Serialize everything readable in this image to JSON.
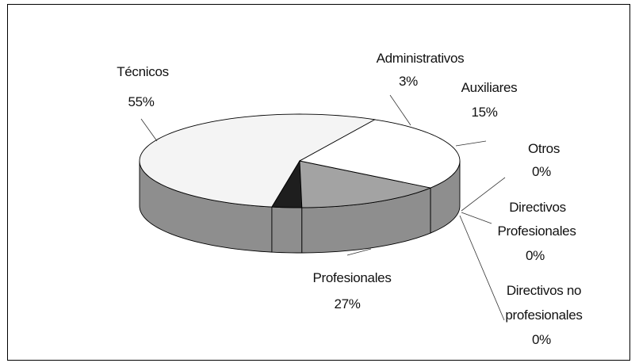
{
  "chart_data": {
    "type": "pie",
    "three_d": true,
    "slices": [
      {
        "name": "Técnicos",
        "value": 55,
        "label": "55%",
        "color": "#f4f4f4"
      },
      {
        "name": "Administrativos",
        "value": 3,
        "label": "3%",
        "color": "#1e1e1e"
      },
      {
        "name": "Auxiliares",
        "value": 15,
        "label": "15%",
        "color": "#a3a3a3"
      },
      {
        "name": "Otros",
        "value": 0,
        "label": "0%",
        "color": "#7a7a7a"
      },
      {
        "name": "Directivos Profesionales",
        "value": 0,
        "label": "0%",
        "color": "#606060"
      },
      {
        "name": "Directivos no profesionales",
        "value": 0,
        "label": "0%",
        "color": "#4a4a4a"
      },
      {
        "name": "Profesionales",
        "value": 27,
        "label": "27%",
        "color": "#ffffff"
      }
    ],
    "side_color": "#8e8e8e",
    "outline_color": "#000000",
    "text": {
      "tecnicos_name": "Técnicos",
      "tecnicos_pct": "55%",
      "admin_name": "Administrativos",
      "admin_pct": "3%",
      "aux_name": "Auxiliares",
      "aux_pct": "15%",
      "otros_name": "Otros",
      "otros_pct": "0%",
      "dirprof_line1": "Directivos",
      "dirprof_line2": "Profesionales",
      "dirprof_pct": "0%",
      "dirnoprof_line1": "Directivos no",
      "dirnoprof_line2": "profesionales",
      "dirnoprof_pct": "0%",
      "prof_name": "Profesionales",
      "prof_pct": "27%"
    }
  }
}
